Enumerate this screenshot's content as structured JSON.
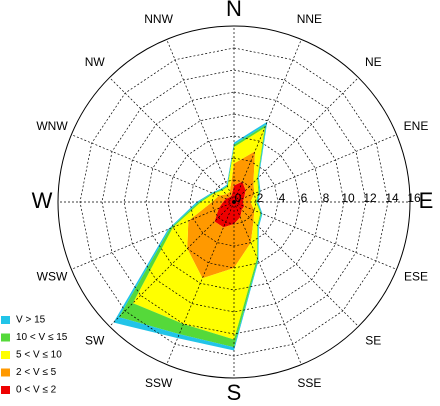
{
  "chart_data": {
    "type": "windrose",
    "categories": [
      "N",
      "NNE",
      "NE",
      "ENE",
      "E",
      "ESE",
      "SE",
      "SSE",
      "S",
      "SSW",
      "SW",
      "WSW",
      "W",
      "WNW",
      "NW",
      "NNW"
    ],
    "series": [
      {
        "name": "0 < V ≤ 2",
        "color": "#ee0000",
        "values": [
          1.5,
          2,
          1.5,
          1,
          0.8,
          1,
          1,
          1.5,
          2,
          2.5,
          2.5,
          1.5,
          1,
          0.8,
          0.6,
          0.6
        ]
      },
      {
        "name": "2 < V ≤ 5",
        "color": "#ff9900",
        "values": [
          2,
          3,
          1,
          1,
          0.7,
          1,
          1.5,
          2.5,
          4,
          5,
          3.5,
          3,
          1,
          0.7,
          0.4,
          0.4
        ]
      },
      {
        "name": "5 < V ≤ 10",
        "color": "#ffff00",
        "values": [
          1.5,
          2.3,
          0.5,
          0.4,
          0.5,
          0.6,
          0.5,
          1.5,
          6.5,
          4.5,
          7,
          1.5,
          1,
          0.5,
          0.5,
          0.5
        ]
      },
      {
        "name": "10 < V ≤ 15",
        "color": "#55d93a",
        "values": [
          0.2,
          0.3,
          0.1,
          0.1,
          0.1,
          0.1,
          0.1,
          0.2,
          0.7,
          1,
          1.8,
          0.3,
          0.2,
          0.1,
          0.1,
          0.1
        ]
      },
      {
        "name": "V > 15",
        "color": "#22c4e8",
        "values": [
          0.2,
          0.3,
          0.1,
          0.1,
          0.1,
          0.1,
          0.1,
          0.1,
          0.3,
          0.4,
          0.7,
          0.2,
          0.2,
          0.1,
          0.1,
          0.1
        ]
      }
    ],
    "ylim": [
      0,
      16
    ],
    "yticks": [
      0,
      2,
      4,
      6,
      8,
      10,
      12,
      14,
      16
    ],
    "grid": true,
    "legend": "lower left"
  }
}
